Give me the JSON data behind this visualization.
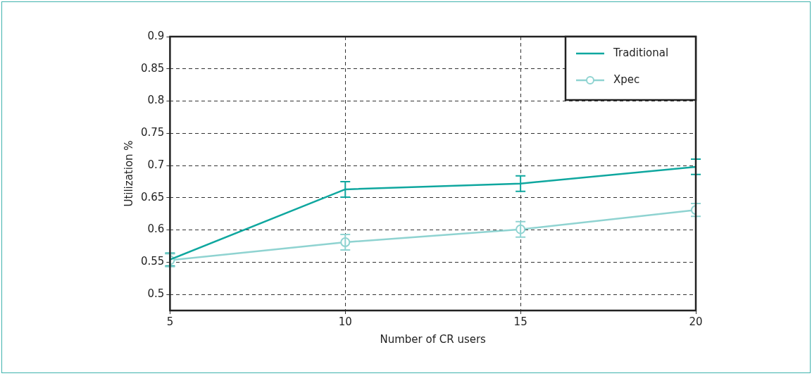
{
  "chart_data": {
    "type": "line",
    "xlabel": "Number of CR users",
    "ylabel": "Utilization %",
    "x": [
      5,
      10,
      15,
      20
    ],
    "series": [
      {
        "name": "Traditional",
        "color": "#0fa79f",
        "marker": "none",
        "values": [
          0.554,
          0.663,
          0.672,
          0.698
        ],
        "errors": [
          0.01,
          0.012,
          0.012,
          0.012
        ]
      },
      {
        "name": "Xpec",
        "color": "#8fd3d1",
        "marker": "circle",
        "values": [
          0.553,
          0.581,
          0.601,
          0.631
        ],
        "errors": [
          0.01,
          0.012,
          0.012,
          0.01
        ]
      }
    ],
    "xlim": [
      5,
      20
    ],
    "xticks": [
      5,
      10,
      15,
      20
    ],
    "ylim": [
      0.475,
      0.9
    ],
    "yticks": [
      0.5,
      0.55,
      0.6,
      0.65,
      0.7,
      0.75,
      0.8,
      0.85,
      0.9
    ],
    "grid": true,
    "legend": "top right",
    "line_style": "solid"
  }
}
